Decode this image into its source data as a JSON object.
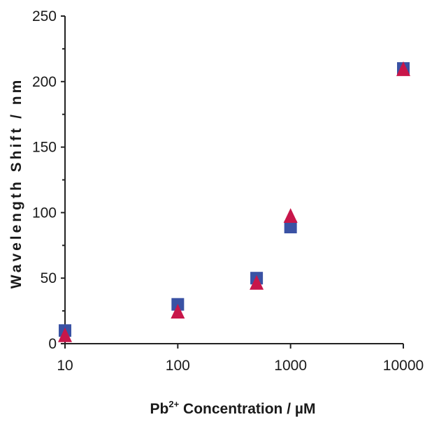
{
  "chart_data": {
    "type": "scatter",
    "xlabel_parts": {
      "base": "Pb",
      "sup": "2+",
      "rest": " Concentration / µM"
    },
    "ylabel": "Wavelength Shift / nm",
    "x_scale": "log",
    "xlim": [
      10,
      10000
    ],
    "ylim": [
      0,
      250
    ],
    "x_ticks": [
      "10",
      "100",
      "1000",
      "10000"
    ],
    "x_tick_values": [
      10,
      100,
      1000,
      10000
    ],
    "y_ticks": [
      "0",
      "50",
      "100",
      "150",
      "200",
      "250"
    ],
    "y_tick_values": [
      0,
      50,
      100,
      150,
      200,
      250
    ],
    "grid": false,
    "legend": "none",
    "series": [
      {
        "marker": "square",
        "color": "#3a52a4",
        "points": [
          {
            "x": 10,
            "y": 10
          },
          {
            "x": 100,
            "y": 30
          },
          {
            "x": 500,
            "y": 50
          },
          {
            "x": 1000,
            "y": 89
          },
          {
            "x": 10000,
            "y": 210
          }
        ]
      },
      {
        "marker": "triangle",
        "color": "#c8164a",
        "points": [
          {
            "x": 10,
            "y": 6
          },
          {
            "x": 100,
            "y": 24
          },
          {
            "x": 500,
            "y": 46
          },
          {
            "x": 1000,
            "y": 97
          },
          {
            "x": 10000,
            "y": 209
          }
        ]
      }
    ]
  }
}
